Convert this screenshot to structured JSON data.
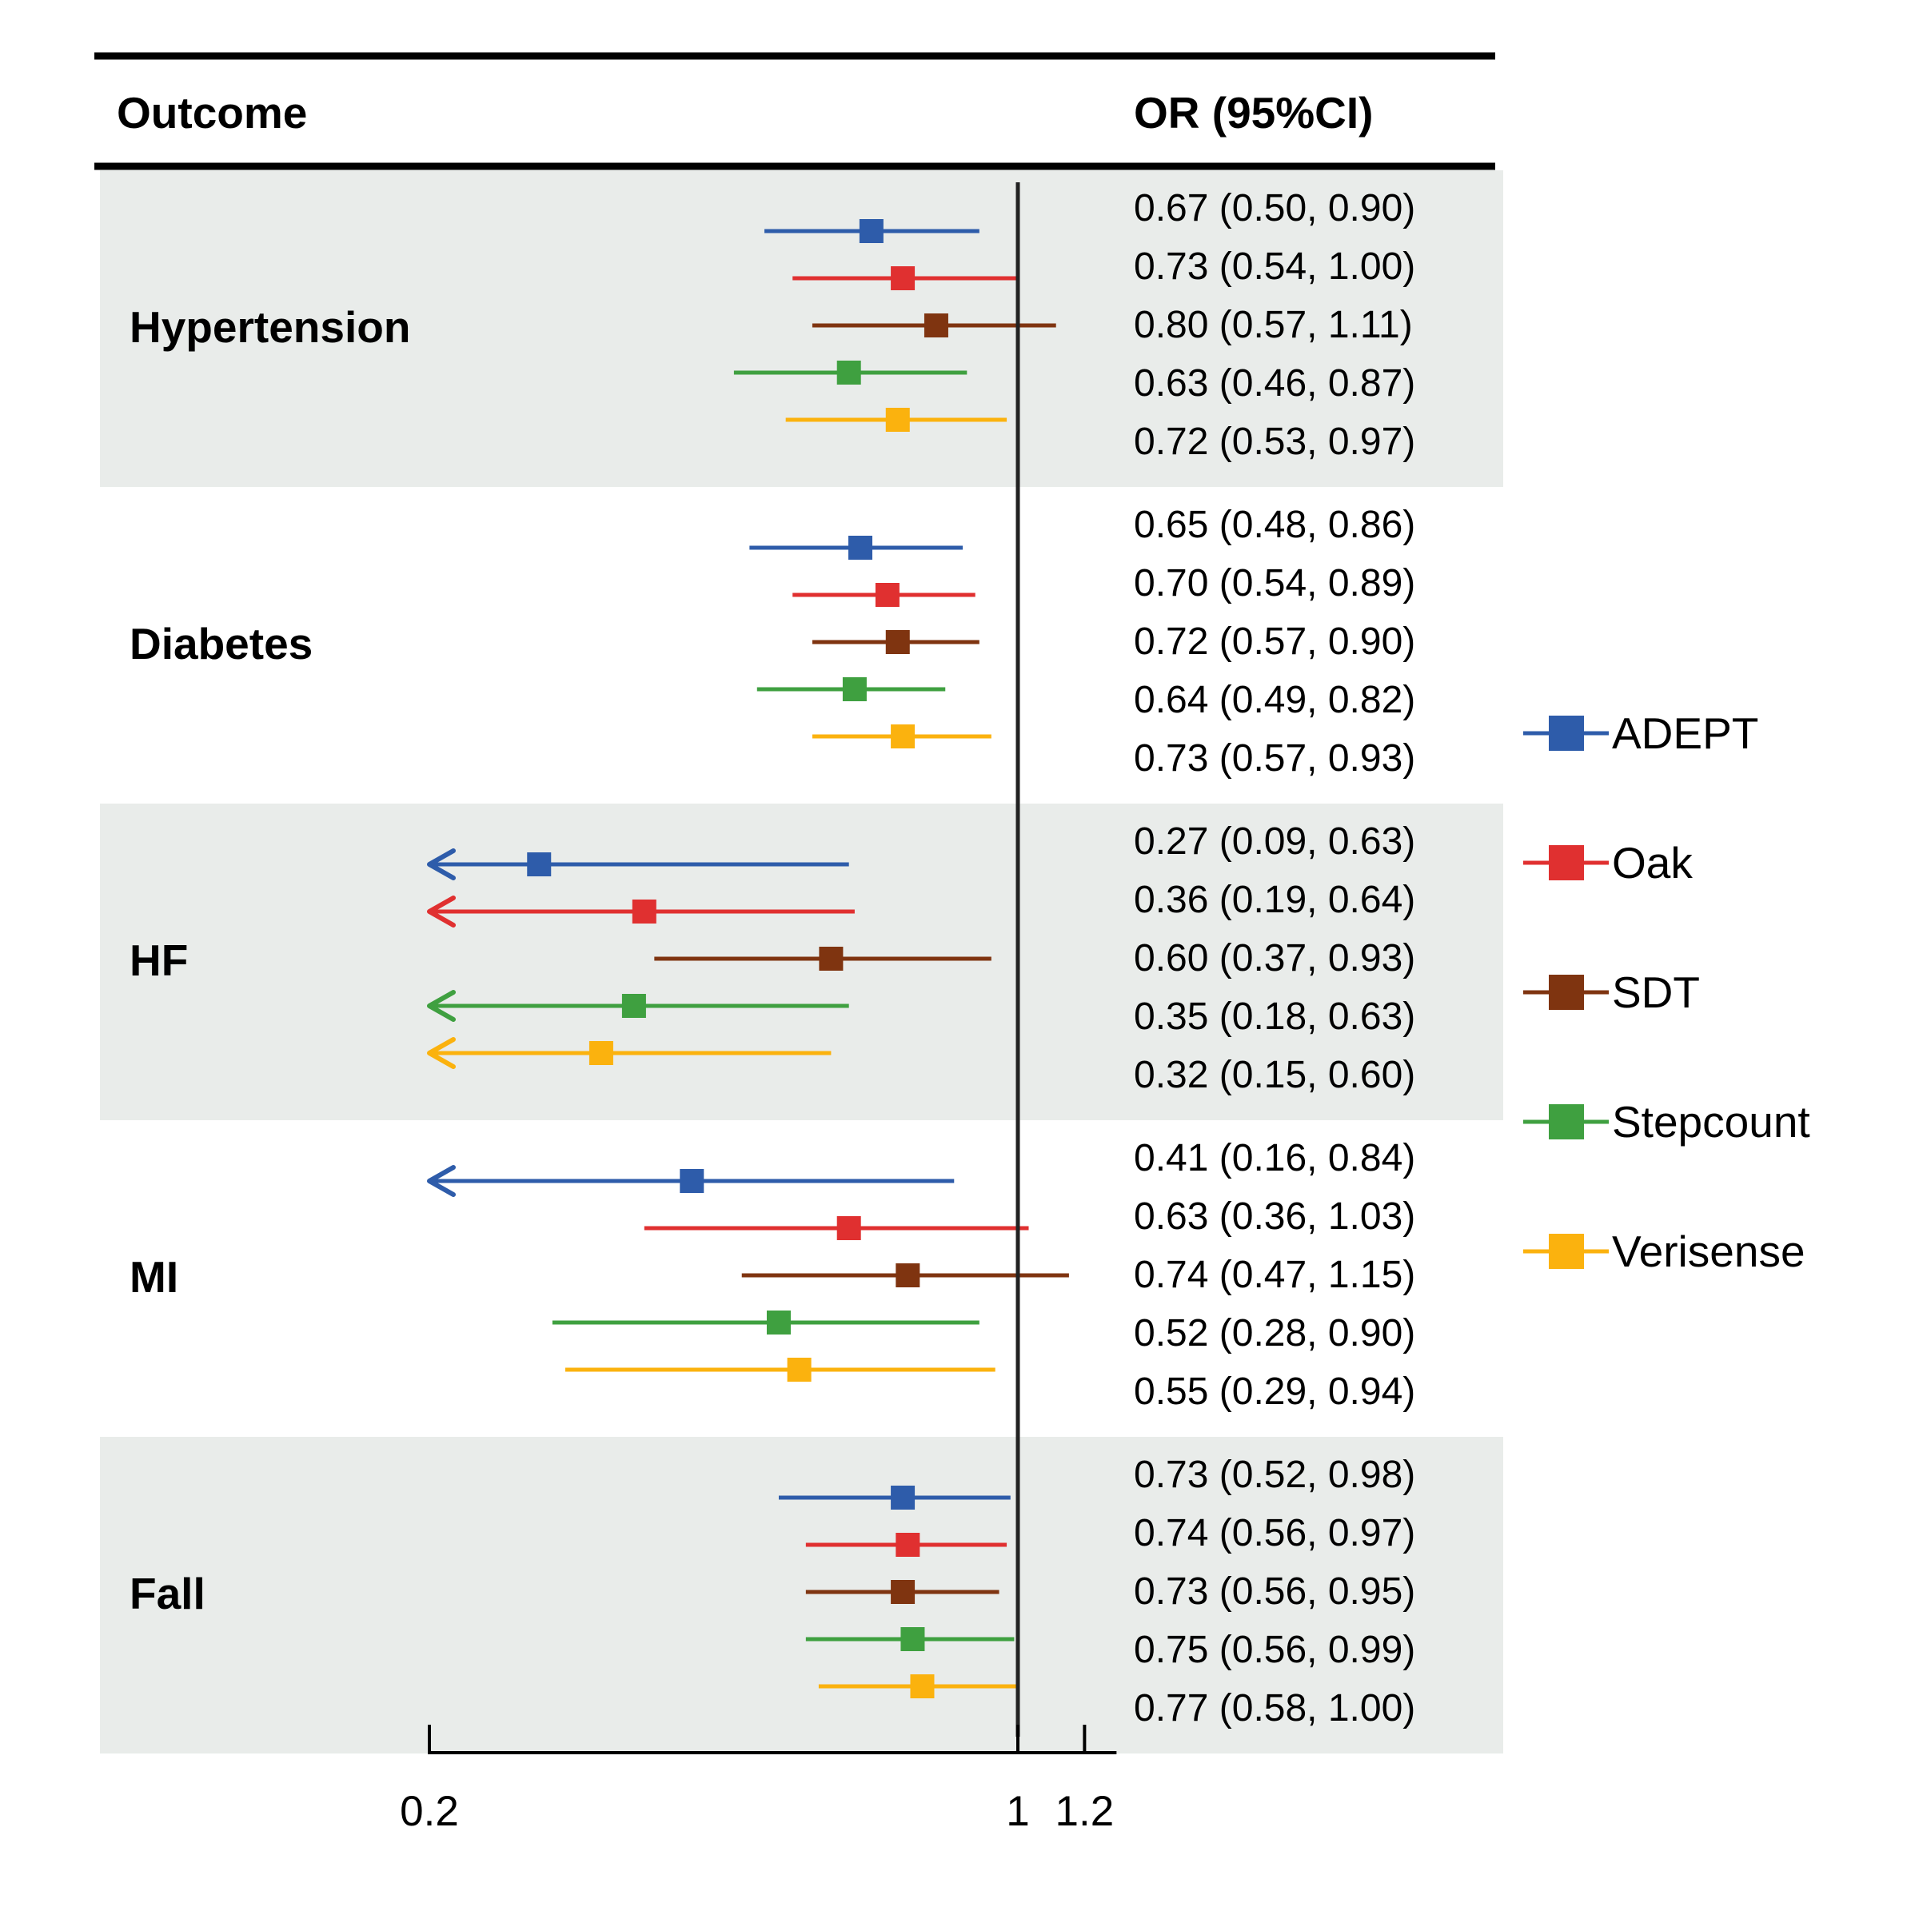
{
  "chart_data": {
    "type": "forest",
    "header": {
      "outcome": "Outcome",
      "or": "OR (95%CI)"
    },
    "x_axis": {
      "scale": "log",
      "xlim": [
        0.2,
        1.2
      ],
      "ticks": [
        0.2,
        1,
        1.2
      ],
      "tick_labels": [
        "0.2",
        "1",
        "1.2"
      ],
      "reference_line": 1
    },
    "series": [
      {
        "name": "ADEPT",
        "color": "#2e5caa"
      },
      {
        "name": "Oak",
        "color": "#e03030"
      },
      {
        "name": "SDT",
        "color": "#7f3410"
      },
      {
        "name": "Stepcount",
        "color": "#3fa040"
      },
      {
        "name": "Verisense",
        "color": "#fbb20e"
      }
    ],
    "groups": [
      {
        "outcome": "Hypertension",
        "shaded": true,
        "rows": [
          {
            "or": 0.67,
            "lo": 0.5,
            "hi": 0.9,
            "label": "0.67 (0.50, 0.90)"
          },
          {
            "or": 0.73,
            "lo": 0.54,
            "hi": 1.0,
            "label": "0.73 (0.54, 1.00)"
          },
          {
            "or": 0.8,
            "lo": 0.57,
            "hi": 1.11,
            "label": "0.80 (0.57, 1.11)"
          },
          {
            "or": 0.63,
            "lo": 0.46,
            "hi": 0.87,
            "label": "0.63 (0.46, 0.87)"
          },
          {
            "or": 0.72,
            "lo": 0.53,
            "hi": 0.97,
            "label": "0.72 (0.53, 0.97)"
          }
        ]
      },
      {
        "outcome": "Diabetes",
        "shaded": false,
        "rows": [
          {
            "or": 0.65,
            "lo": 0.48,
            "hi": 0.86,
            "label": "0.65 (0.48, 0.86)"
          },
          {
            "or": 0.7,
            "lo": 0.54,
            "hi": 0.89,
            "label": "0.70 (0.54, 0.89)"
          },
          {
            "or": 0.72,
            "lo": 0.57,
            "hi": 0.9,
            "label": "0.72 (0.57, 0.90)"
          },
          {
            "or": 0.64,
            "lo": 0.49,
            "hi": 0.82,
            "label": "0.64 (0.49, 0.82)"
          },
          {
            "or": 0.73,
            "lo": 0.57,
            "hi": 0.93,
            "label": "0.73 (0.57, 0.93)"
          }
        ]
      },
      {
        "outcome": "HF",
        "shaded": true,
        "rows": [
          {
            "or": 0.27,
            "lo": 0.09,
            "hi": 0.63,
            "label": "0.27 (0.09, 0.63)"
          },
          {
            "or": 0.36,
            "lo": 0.19,
            "hi": 0.64,
            "label": "0.36 (0.19, 0.64)"
          },
          {
            "or": 0.6,
            "lo": 0.37,
            "hi": 0.93,
            "label": "0.60 (0.37, 0.93)"
          },
          {
            "or": 0.35,
            "lo": 0.18,
            "hi": 0.63,
            "label": "0.35 (0.18, 0.63)"
          },
          {
            "or": 0.32,
            "lo": 0.15,
            "hi": 0.6,
            "label": "0.32 (0.15, 0.60)"
          }
        ]
      },
      {
        "outcome": "MI",
        "shaded": false,
        "rows": [
          {
            "or": 0.41,
            "lo": 0.16,
            "hi": 0.84,
            "label": "0.41 (0.16, 0.84)"
          },
          {
            "or": 0.63,
            "lo": 0.36,
            "hi": 1.03,
            "label": "0.63 (0.36, 1.03)"
          },
          {
            "or": 0.74,
            "lo": 0.47,
            "hi": 1.15,
            "label": "0.74 (0.47, 1.15)"
          },
          {
            "or": 0.52,
            "lo": 0.28,
            "hi": 0.9,
            "label": "0.52 (0.28, 0.90)"
          },
          {
            "or": 0.55,
            "lo": 0.29,
            "hi": 0.94,
            "label": "0.55 (0.29, 0.94)"
          }
        ]
      },
      {
        "outcome": "Fall",
        "shaded": true,
        "rows": [
          {
            "or": 0.73,
            "lo": 0.52,
            "hi": 0.98,
            "label": "0.73 (0.52, 0.98)"
          },
          {
            "or": 0.74,
            "lo": 0.56,
            "hi": 0.97,
            "label": "0.74 (0.56, 0.97)"
          },
          {
            "or": 0.73,
            "lo": 0.56,
            "hi": 0.95,
            "label": "0.73 (0.56, 0.95)"
          },
          {
            "or": 0.75,
            "lo": 0.56,
            "hi": 0.99,
            "label": "0.75 (0.56, 0.99)"
          },
          {
            "or": 0.77,
            "lo": 0.58,
            "hi": 1.0,
            "label": "0.77 (0.58, 1.00)"
          }
        ]
      }
    ],
    "shading_color": "#e9ecea",
    "legend_position": "right"
  }
}
